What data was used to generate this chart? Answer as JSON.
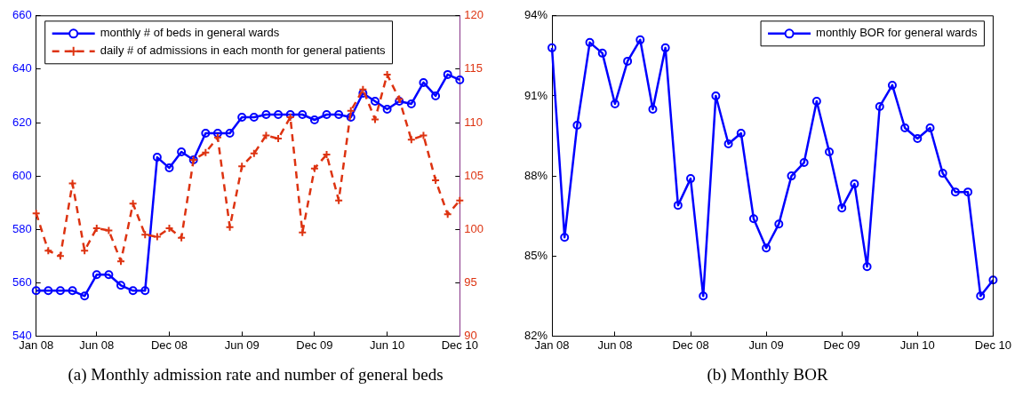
{
  "chart_data": [
    {
      "type": "line",
      "annotations": [
        "(a) Monthly admission rate and number of general beds"
      ],
      "categories": [
        "Jan 08",
        null,
        null,
        null,
        null,
        "Jun 08",
        null,
        null,
        null,
        null,
        null,
        "Dec 08",
        null,
        null,
        null,
        null,
        null,
        "Jun 09",
        null,
        null,
        null,
        null,
        null,
        "Dec 09",
        null,
        null,
        null,
        null,
        null,
        "Jun 10",
        null,
        null,
        null,
        null,
        null,
        "Dec 10"
      ],
      "series": [
        {
          "name": "monthly # of beds in general wards",
          "color": "#0000ff",
          "marker": "circle",
          "line_style": "solid",
          "values": [
            557,
            557,
            557,
            557,
            555,
            563,
            563,
            559,
            557,
            557,
            607,
            603,
            609,
            606,
            616,
            616,
            616,
            622,
            622,
            623,
            623,
            623,
            623,
            621,
            623,
            623,
            622,
            631,
            628,
            625,
            628,
            627,
            635,
            630,
            638,
            636
          ]
        },
        {
          "name": "daily # of admissions in each month for general patients",
          "color": "#dd3311",
          "marker": "cross",
          "line_style": "dashed",
          "axis": "y2",
          "values": [
            101.5,
            98.0,
            97.5,
            104.3,
            98.0,
            100.1,
            99.9,
            97.0,
            102.4,
            99.5,
            99.3,
            100.1,
            99.2,
            106.5,
            107.2,
            108.6,
            100.2,
            105.9,
            107.1,
            108.8,
            108.5,
            110.5,
            99.7,
            105.7,
            107.0,
            102.7,
            111.1,
            113.1,
            110.3,
            114.5,
            112.2,
            108.4,
            108.8,
            104.6,
            101.4,
            102.7
          ]
        }
      ],
      "ylim": [
        540,
        660
      ],
      "yticks": [
        540,
        560,
        580,
        600,
        620,
        640,
        660
      ],
      "y2lim": [
        90,
        120
      ],
      "y2ticks": [
        90,
        95,
        100,
        105,
        110,
        115,
        120
      ],
      "grid": false,
      "legend": "top left"
    },
    {
      "type": "line",
      "annotations": [
        "(b) Monthly BOR"
      ],
      "categories": [
        "Jan 08",
        null,
        null,
        null,
        null,
        "Jun 08",
        null,
        null,
        null,
        null,
        null,
        "Dec 08",
        null,
        null,
        null,
        null,
        null,
        "Jun 09",
        null,
        null,
        null,
        null,
        null,
        "Dec 09",
        null,
        null,
        null,
        null,
        null,
        "Jun 10",
        null,
        null,
        null,
        null,
        null,
        "Dec 10"
      ],
      "series": [
        {
          "name": "monthly BOR for general wards",
          "color": "#0000ff",
          "marker": "circle",
          "line_style": "solid",
          "values": [
            92.8,
            85.7,
            89.9,
            93.0,
            92.6,
            90.7,
            92.3,
            93.1,
            90.5,
            92.8,
            86.9,
            87.9,
            83.5,
            91.0,
            89.2,
            89.6,
            86.4,
            85.3,
            86.2,
            88.0,
            88.5,
            90.8,
            88.9,
            86.8,
            87.7,
            84.6,
            90.6,
            91.4,
            89.8,
            89.4,
            89.8,
            88.1,
            87.4,
            87.4,
            83.5,
            84.1
          ]
        }
      ],
      "ylim": [
        82,
        94
      ],
      "yticks": [
        {
          "value": 82,
          "label": "82%"
        },
        {
          "value": 85,
          "label": "85%"
        },
        {
          "value": 88,
          "label": "88%"
        },
        {
          "value": 91,
          "label": "91%"
        },
        {
          "value": 94,
          "label": "94%"
        }
      ],
      "grid": false,
      "legend": "top right"
    }
  ]
}
